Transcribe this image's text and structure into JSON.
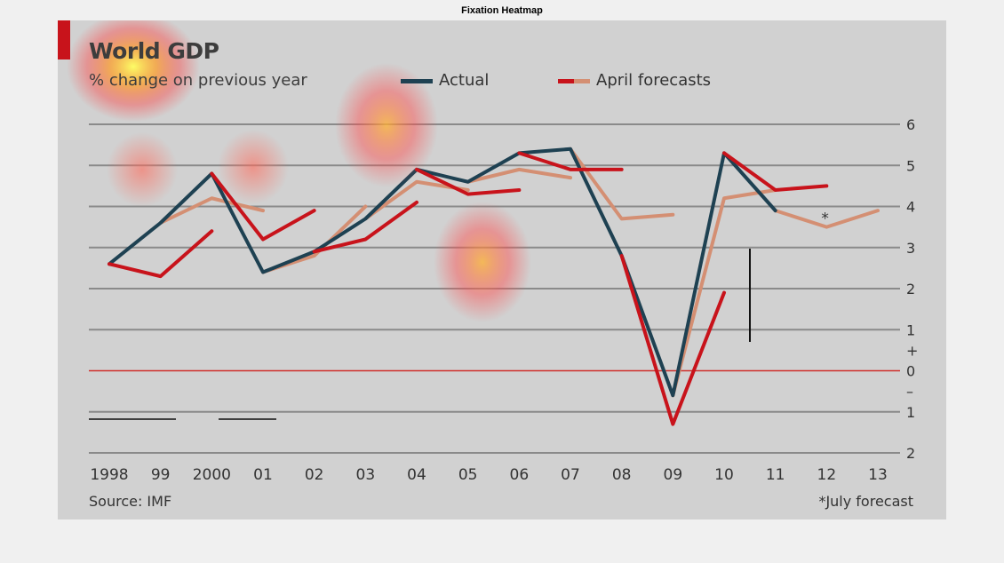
{
  "figure_title": "Fixation Heatmap",
  "colors": {
    "background": "#d1d1d1",
    "gridline": "#8a8a8a",
    "zero_line": "#d0302c",
    "actual": "#1e4152",
    "april_red": "#c8131b",
    "april_tan": "#d48f73",
    "accent_tab": "#c8131b"
  },
  "chart_data": {
    "type": "line",
    "title": "World GDP",
    "subtitle": "% change on previous year",
    "source": "Source: IMF",
    "footnote": "*July forecast",
    "footnote_marker": "*",
    "legend": [
      {
        "label": "Actual"
      },
      {
        "label": "April forecasts"
      }
    ],
    "x_ticks": [
      "1998",
      "99",
      "2000",
      "01",
      "02",
      "03",
      "04",
      "05",
      "06",
      "07",
      "08",
      "09",
      "10",
      "11",
      "12",
      "13"
    ],
    "y_ticks": [
      {
        "value": 6,
        "label": "6"
      },
      {
        "value": 5,
        "label": "5"
      },
      {
        "value": 4,
        "label": "4"
      },
      {
        "value": 3,
        "label": "3"
      },
      {
        "value": 2,
        "label": "2"
      },
      {
        "value": 1,
        "label": "1"
      },
      {
        "value": 0,
        "label": "0"
      },
      {
        "value": -1,
        "label": "1"
      },
      {
        "value": -2,
        "label": "2"
      }
    ],
    "y_sign_labels": [
      {
        "value": 0.5,
        "label": "+"
      },
      {
        "value": -0.5,
        "label": "–"
      }
    ],
    "ylim": [
      -2,
      6
    ],
    "actual": {
      "x": [
        1998,
        1999,
        2000,
        2001,
        2002,
        2003,
        2004,
        2005,
        2006,
        2007,
        2008,
        2009,
        2010,
        2011
      ],
      "y": [
        2.6,
        3.6,
        4.8,
        2.4,
        2.9,
        3.7,
        4.9,
        4.6,
        5.3,
        5.4,
        2.8,
        -0.6,
        5.3,
        3.9
      ]
    },
    "forecasts": [
      {
        "color": "tan",
        "x": [
          1999,
          2000,
          2001
        ],
        "y": [
          3.6,
          4.2,
          3.9
        ]
      },
      {
        "color": "red",
        "x": [
          1998,
          1999,
          2000
        ],
        "y": [
          2.6,
          2.3,
          3.4
        ]
      },
      {
        "color": "red",
        "x": [
          2000,
          2001,
          2002
        ],
        "y": [
          4.8,
          3.2,
          3.9
        ]
      },
      {
        "color": "tan",
        "x": [
          2001,
          2002,
          2003
        ],
        "y": [
          2.4,
          2.8,
          4.0
        ]
      },
      {
        "color": "red",
        "x": [
          2002,
          2003,
          2004
        ],
        "y": [
          2.9,
          3.2,
          4.1
        ]
      },
      {
        "color": "tan",
        "x": [
          2003,
          2004,
          2005
        ],
        "y": [
          3.7,
          4.6,
          4.4
        ]
      },
      {
        "color": "red",
        "x": [
          2004,
          2005,
          2006
        ],
        "y": [
          4.9,
          4.3,
          4.4
        ]
      },
      {
        "color": "tan",
        "x": [
          2005,
          2006,
          2007
        ],
        "y": [
          4.6,
          4.9,
          4.7
        ]
      },
      {
        "color": "red",
        "x": [
          2006,
          2007,
          2008
        ],
        "y": [
          5.3,
          4.9,
          4.9
        ]
      },
      {
        "color": "tan",
        "x": [
          2007,
          2008,
          2009
        ],
        "y": [
          5.4,
          3.7,
          3.8
        ]
      },
      {
        "color": "red",
        "x": [
          2008,
          2009,
          2010
        ],
        "y": [
          2.8,
          -1.3,
          1.9
        ]
      },
      {
        "color": "tan",
        "x": [
          2009,
          2010,
          2011
        ],
        "y": [
          -0.6,
          4.2,
          4.4
        ]
      },
      {
        "color": "red",
        "x": [
          2010,
          2011,
          2012
        ],
        "y": [
          5.3,
          4.4,
          4.5
        ]
      },
      {
        "color": "tan",
        "x": [
          2011,
          2012,
          2013
        ],
        "y": [
          3.9,
          3.5,
          3.9
        ]
      }
    ]
  }
}
